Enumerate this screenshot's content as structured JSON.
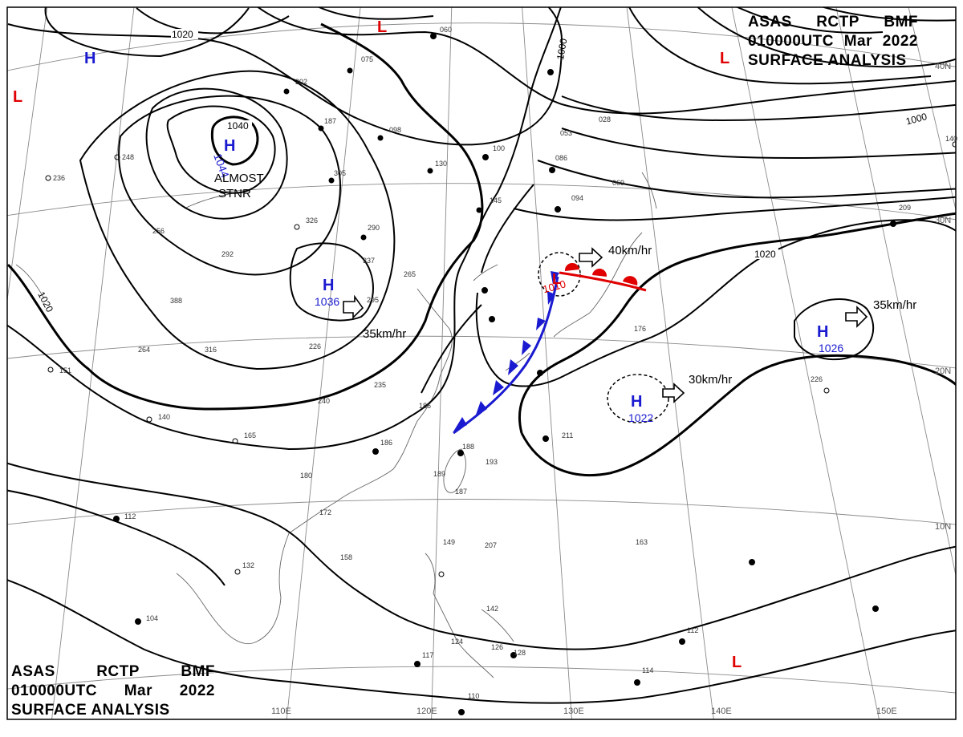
{
  "header": {
    "agency": [
      "ASAS",
      "RCTP",
      "BMF"
    ],
    "time": [
      "010000UTC",
      "Mar",
      "2022"
    ],
    "title": "SURFACE ANALYSIS"
  },
  "longitudes": [
    "110E",
    "120E",
    "130E",
    "140E",
    "150E"
  ],
  "latitudes": [
    "40N",
    "30N",
    "20N",
    "10N"
  ],
  "isobar_labels": [
    "1020",
    "1040",
    "1000",
    "1000",
    "1020",
    "1020"
  ],
  "pressure_centers": [
    {
      "type": "H",
      "value": "1044",
      "color": "#1a1ad0"
    },
    {
      "type": "H",
      "value": "1036",
      "color": "#1a1ad0"
    },
    {
      "type": "H",
      "value": "1026",
      "color": "#1a1ad0"
    },
    {
      "type": "H",
      "value": "1022",
      "color": "#1a1ad0"
    },
    {
      "type": "H",
      "value": "",
      "color": "#1a1ad0"
    },
    {
      "type": "L",
      "value": "1010",
      "color": "#e00000"
    },
    {
      "type": "L",
      "value": "",
      "color": "#e00000"
    },
    {
      "type": "L",
      "value": "",
      "color": "#e00000"
    },
    {
      "type": "L",
      "value": "",
      "color": "#e00000"
    },
    {
      "type": "L",
      "value": "",
      "color": "#e00000"
    }
  ],
  "annotations": {
    "stationary_note": [
      "ALMOST",
      "STNR"
    ]
  },
  "movements": [
    "40km/hr",
    "35km/hr",
    "35km/hr",
    "30km/hr"
  ],
  "colors": {
    "high": "#1a1ad0",
    "low": "#e00000",
    "cold_front": "#1a1ad0",
    "warm_front": "#e00000",
    "grid": "#8a8a8a"
  },
  "station_numbers": [
    "060",
    "075",
    "202",
    "187",
    "098",
    "100",
    "130",
    "305",
    "326",
    "290",
    "337",
    "265",
    "295",
    "248",
    "236",
    "256",
    "292",
    "388",
    "264",
    "316",
    "226",
    "235",
    "240",
    "186",
    "151",
    "140",
    "165",
    "186",
    "188",
    "193",
    "189",
    "187",
    "180",
    "172",
    "112",
    "158",
    "132",
    "104",
    "149",
    "207",
    "142",
    "124",
    "126",
    "128",
    "110",
    "117",
    "163",
    "112",
    "114",
    "145",
    "094",
    "086",
    "053",
    "069",
    "028",
    "211",
    "176",
    "226",
    "209",
    "140"
  ]
}
